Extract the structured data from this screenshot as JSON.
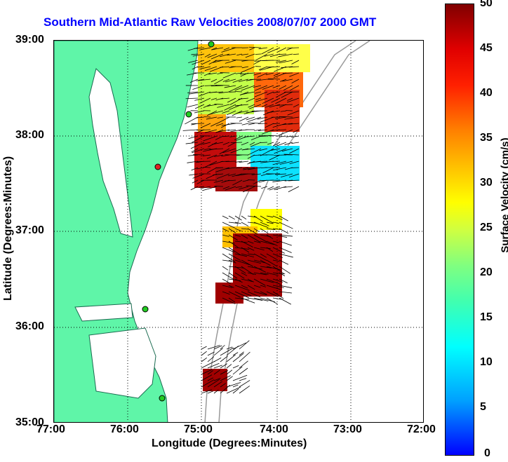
{
  "title": "Southern Mid-Atlantic Raw Velocities 2008/07/07 2000 GMT",
  "axes": {
    "xlabel": "Longitude (Degrees:Minutes)",
    "ylabel": "Latitude (Degrees:Minutes)",
    "xticks": [
      "77:00",
      "76:00",
      "75:00",
      "74:00",
      "73:00",
      "72:00"
    ],
    "yticks": [
      "39:00",
      "38:00",
      "37:00",
      "36:00",
      "35:00"
    ]
  },
  "colorbar": {
    "label": "Surface Velocity (cm/s)",
    "ticks": [
      "50",
      "45",
      "40",
      "35",
      "30",
      "25",
      "20",
      "15",
      "10",
      "5",
      "0"
    ],
    "min": 0,
    "max": 50
  },
  "colors": {
    "land": "#5ff5a8",
    "title": "#0000ff",
    "station_green": "#22cc22",
    "station_red": "#dd2222"
  }
}
